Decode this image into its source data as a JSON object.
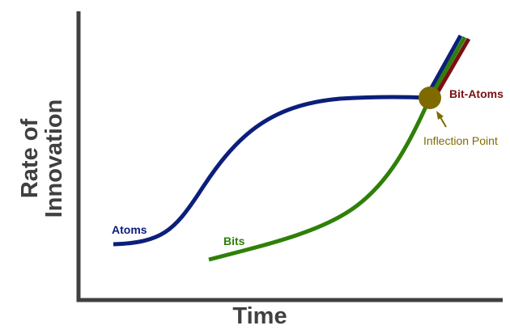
{
  "axes": {
    "x_title": "Time",
    "y_title_line1": "Rate of",
    "y_title_line2": "Innovation"
  },
  "curves": {
    "atoms": {
      "label": "Atoms",
      "color": "#0b1f7a"
    },
    "bits": {
      "label": "Bits",
      "color": "#2e8008"
    },
    "bit_atoms": {
      "label": "Bit-Atoms",
      "color": "#7a1010"
    }
  },
  "inflection_point": {
    "label": "Inflection Point",
    "color": "#7f6a00"
  },
  "axis_color": "#404040"
}
